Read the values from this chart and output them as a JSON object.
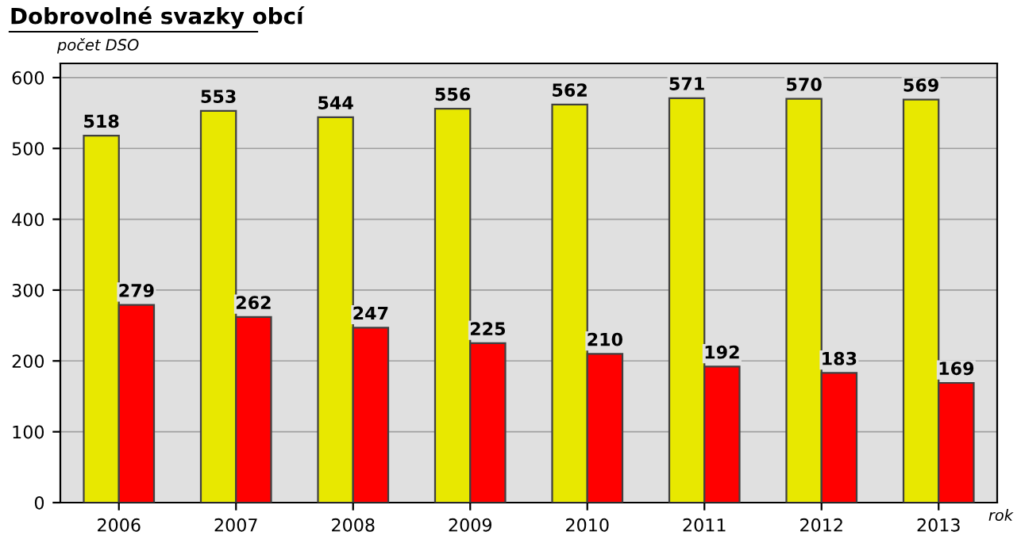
{
  "chart_data": {
    "type": "bar",
    "title": "Dobrovolné svazky obcí",
    "ylabel": "počet DSO",
    "xlabel": "rok",
    "categories": [
      "2006",
      "2007",
      "2008",
      "2009",
      "2010",
      "2011",
      "2012",
      "2013"
    ],
    "series": [
      {
        "color": "#e8e800",
        "values": [
          518,
          553,
          544,
          556,
          562,
          571,
          570,
          569
        ]
      },
      {
        "color": "#ff0000",
        "values": [
          279,
          262,
          247,
          225,
          210,
          192,
          183,
          169
        ]
      }
    ],
    "ylim": [
      0,
      620
    ],
    "yticks": [
      0,
      100,
      200,
      300,
      400,
      500,
      600
    ],
    "grid": "y",
    "data_labels": true
  }
}
